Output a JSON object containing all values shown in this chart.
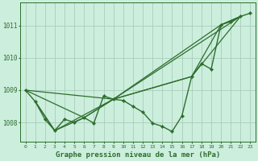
{
  "background_color": "#cceedd",
  "grid_color": "#aaccbb",
  "line_color": "#2d6e2d",
  "xlabel": "Graphe pression niveau de la mer (hPa)",
  "xlabel_fontsize": 6.5,
  "ylim": [
    1007.4,
    1011.7
  ],
  "xlim": [
    -0.5,
    23.5
  ],
  "yticks": [
    1008,
    1009,
    1010,
    1011
  ],
  "xtick_count": 24,
  "figsize": [
    3.2,
    2.0
  ],
  "dpi": 100,
  "series": [
    {
      "x": [
        0,
        1,
        2,
        3,
        4,
        5,
        6,
        7,
        8,
        9,
        10,
        11,
        12,
        13,
        14,
        15,
        16,
        17,
        18,
        19,
        20,
        21,
        22,
        23
      ],
      "y": [
        1009.0,
        1008.65,
        1008.1,
        1007.75,
        1008.1,
        1008.0,
        1008.15,
        1007.98,
        1008.82,
        1008.72,
        1008.68,
        1008.5,
        1008.32,
        1007.98,
        1007.88,
        1007.72,
        1008.2,
        1009.42,
        1009.82,
        1009.65,
        1011.02,
        1011.12,
        1011.28,
        1011.38
      ],
      "marker": true,
      "linewidth": 1.0
    },
    {
      "x": [
        1,
        3,
        6,
        9,
        22
      ],
      "y": [
        1008.65,
        1007.75,
        1008.15,
        1008.72,
        1011.28
      ],
      "marker": false,
      "linewidth": 0.9
    },
    {
      "x": [
        1,
        3,
        9,
        17,
        22
      ],
      "y": [
        1008.65,
        1007.75,
        1008.72,
        1009.42,
        1011.28
      ],
      "marker": false,
      "linewidth": 0.9
    },
    {
      "x": [
        0,
        9,
        17,
        20,
        22
      ],
      "y": [
        1009.0,
        1008.72,
        1009.42,
        1011.02,
        1011.28
      ],
      "marker": false,
      "linewidth": 0.9
    },
    {
      "x": [
        0,
        6,
        9,
        20,
        22
      ],
      "y": [
        1009.0,
        1008.15,
        1008.72,
        1011.02,
        1011.28
      ],
      "marker": false,
      "linewidth": 0.9
    }
  ]
}
